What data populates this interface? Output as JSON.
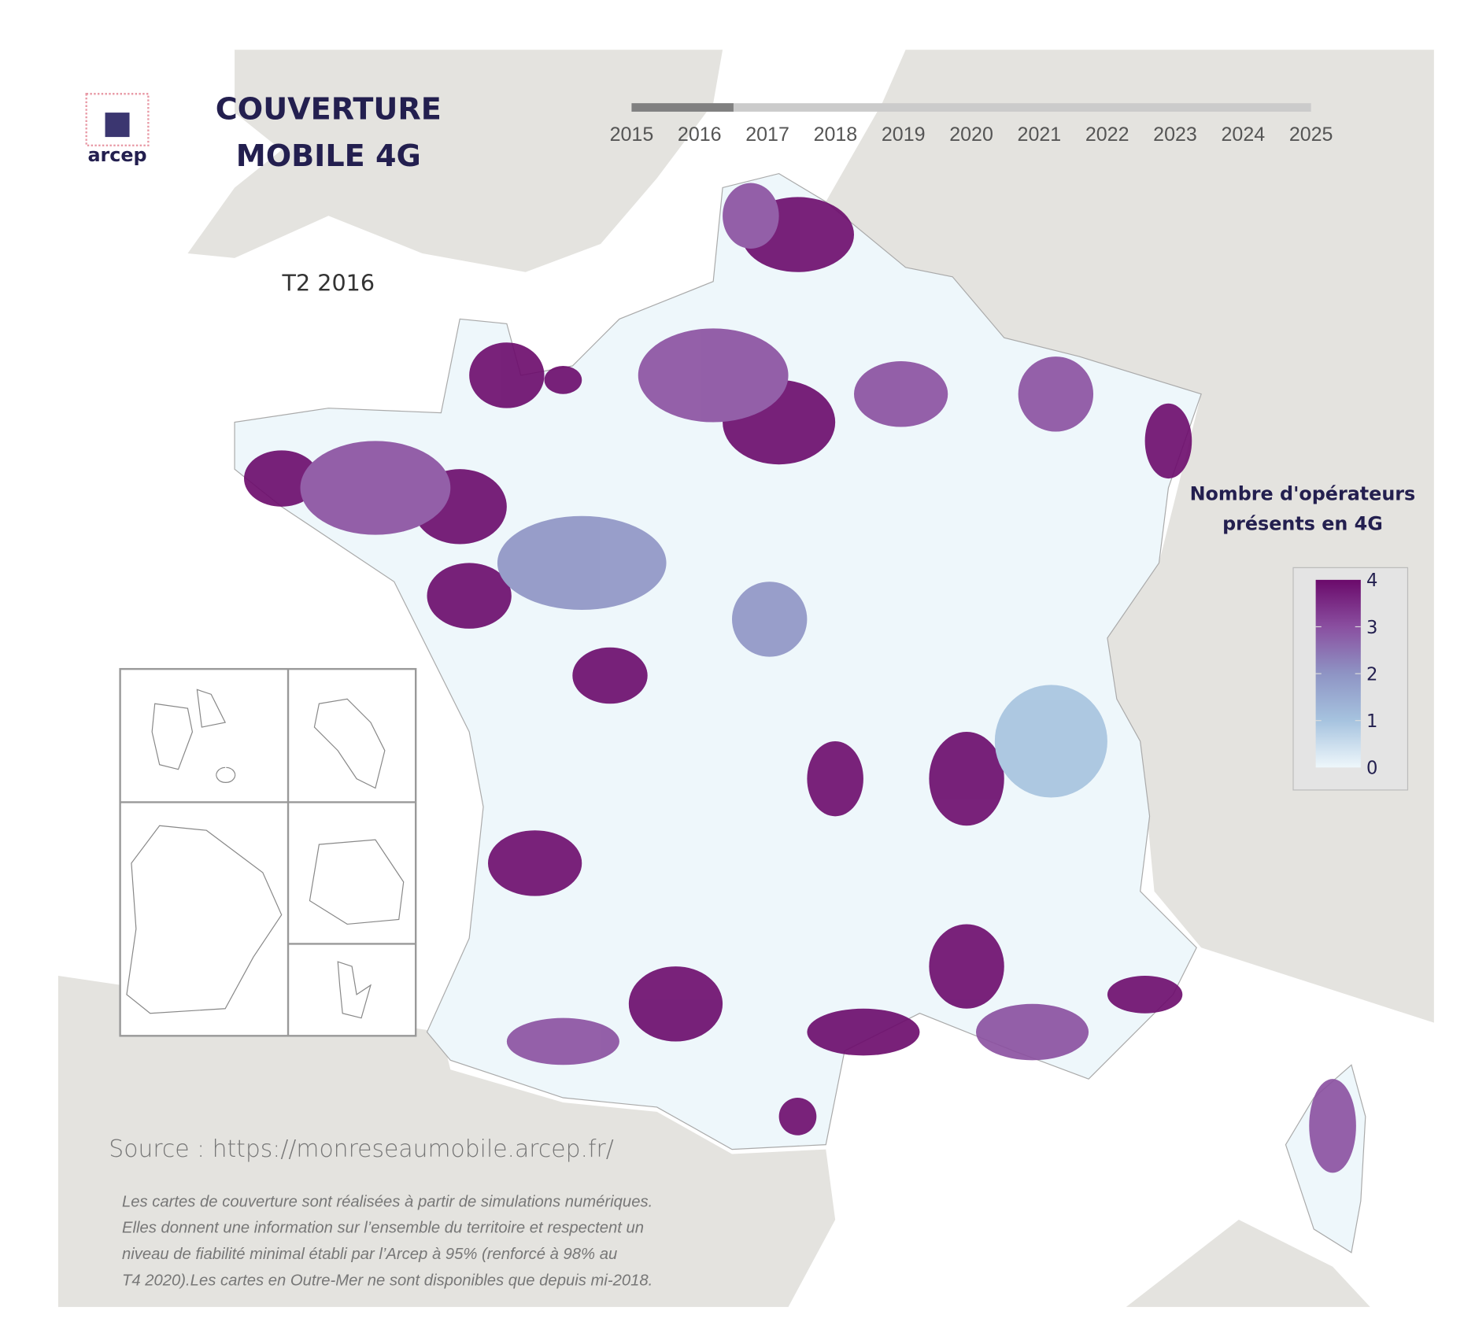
{
  "header": {
    "logo_text": "arcep",
    "title_line1": "COUVERTURE",
    "title_line2": "MOBILE 4G"
  },
  "timeline": {
    "years": [
      "2015",
      "2016",
      "2017",
      "2018",
      "2019",
      "2020",
      "2021",
      "2022",
      "2023",
      "2024",
      "2025"
    ],
    "selected_year": "2016",
    "progress_fraction": 0.15
  },
  "period_label": "T2 2016",
  "legend": {
    "title_line1": "Nombre d'opérateurs",
    "title_line2": "présents en 4G",
    "ticks": [
      "4",
      "3",
      "2",
      "1",
      "0"
    ],
    "colors": {
      "0": "#eef7fb",
      "1": "#a6c3df",
      "2": "#8e94c4",
      "3": "#8a4fa0",
      "4": "#6b0a6b"
    }
  },
  "insets": [
    "Guadeloupe",
    "Martinique",
    "Guyane",
    "La Réunion",
    "Mayotte"
  ],
  "source": "Source : https://monreseaumobile.arcep.fr/",
  "disclaimer": [
    "Les cartes de couverture sont réalisées à partir de simulations numériques.",
    "Elles donnent une information sur l’ensemble du territoire et respectent un",
    "niveau de fiabilité minimal établi par l’Arcep à 95% (renforcé à 98% au",
    "T4 2020).Les cartes en Outre-Mer ne sont disponibles que depuis mi-2018."
  ],
  "colors": {
    "land": "#e4e3df",
    "title": "#231f4f",
    "sea": "#ffffff"
  }
}
